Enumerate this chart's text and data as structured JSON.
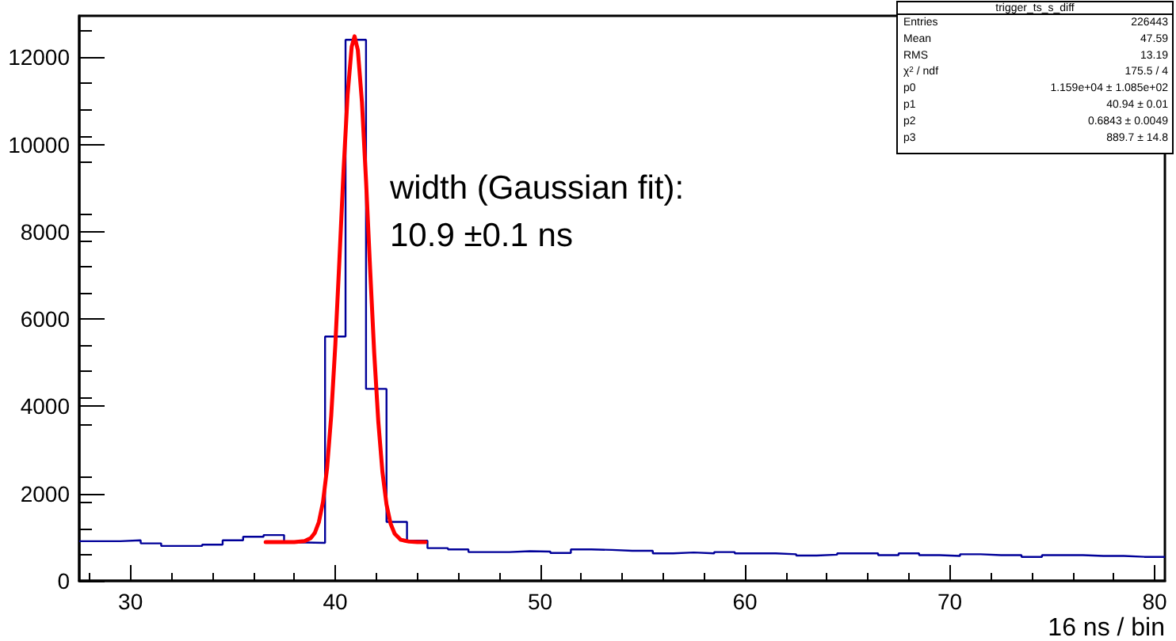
{
  "chart_data": {
    "type": "histogram",
    "xlabel": "16 ns / bin",
    "bins": [
      27.5,
      28.5,
      29.5,
      30.5,
      31.5,
      32.5,
      33.5,
      34.5,
      35.5,
      36.5,
      37.5,
      38.5,
      39.5,
      40.5,
      41.5,
      42.5,
      43.5,
      44.5,
      45.5,
      46.5,
      47.5,
      48.5,
      49.5,
      50.5,
      51.5,
      52.5,
      53.5,
      54.5,
      55.5,
      56.5,
      57.5,
      58.5,
      59.5,
      60.5,
      61.5,
      62.5,
      63.5,
      64.5,
      65.5,
      66.5,
      67.5,
      68.5,
      69.5,
      70.5,
      71.5,
      72.5,
      73.5,
      74.5,
      75.5,
      76.5,
      77.5,
      78.5,
      79.5,
      80.5
    ],
    "series": [
      {
        "color": "#000099",
        "values": [
          910,
          910,
          930,
          860,
          800,
          800,
          830,
          930,
          1010,
          1050,
          880,
          870,
          5600,
          12400,
          4400,
          1350,
          920,
          750,
          720,
          660,
          660,
          680,
          670,
          640,
          720,
          710,
          690,
          690,
          630,
          650,
          630,
          660,
          630,
          630,
          610,
          580,
          600,
          630,
          630,
          590,
          630,
          590,
          570,
          610,
          590,
          590,
          550,
          590,
          590,
          570,
          570,
          550,
          550
        ]
      },
      {
        "type": "line",
        "color": "#ff0000",
        "x": [
          36.6,
          37.5,
          38.0,
          38.5,
          38.8,
          39.0,
          39.2,
          39.4,
          39.6,
          39.8,
          40.0,
          40.2,
          40.4,
          40.6,
          40.8,
          40.94,
          41.1,
          41.3,
          41.5,
          41.7,
          41.9,
          42.1,
          42.3,
          42.5,
          42.7,
          42.9,
          43.2,
          43.6,
          44.0,
          44.4
        ],
        "values": [
          890,
          890,
          890,
          910,
          980,
          1100,
          1350,
          1810,
          2590,
          3780,
          5400,
          7350,
          9380,
          11140,
          12240,
          12480,
          12170,
          10980,
          9180,
          7150,
          5220,
          3650,
          2500,
          1750,
          1310,
          1080,
          940,
          900,
          890,
          890
        ]
      }
    ],
    "xlim": [
      27.5,
      80.5
    ],
    "xticks": [
      30,
      40,
      50,
      60,
      70,
      80
    ],
    "ylim": [
      0,
      12950
    ],
    "yticks": [
      0,
      2000,
      4000,
      6000,
      8000,
      10000,
      12000
    ],
    "grid": false,
    "marker": "none",
    "line_style": "solid",
    "annotations": [
      "width (Gaussian fit):\n10.9 ±0.1 ns",
      "trigger_ts_s_diff",
      "Entries\t226443",
      "Mean\t47.59",
      "RMS\t13.19",
      "χ$^{2}$ / ndf\t175.5 / 4",
      "p0\t1.159e+04 ± 1.085e+02",
      "p1\t40.94 ± 0.01",
      "p2\t0.6843 ± 0.0049",
      "p3\t889.7 ± 14.8"
    ]
  }
}
